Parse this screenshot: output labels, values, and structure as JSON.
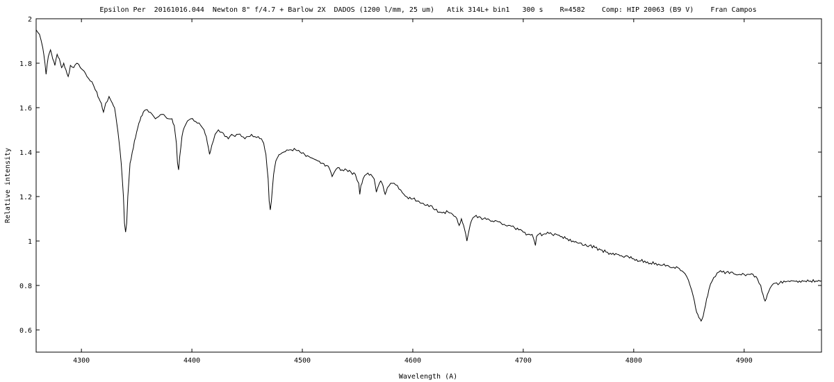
{
  "chart_data": {
    "type": "line",
    "title": "Epsilon Per  20161016.044  Newton 8\" f/4.7 + Barlow 2X  DADOS (1200 l/mm, 25 um)   Atik 314L+ bin1   300 s    R=4582    Comp: HIP 20063 (B9 V)    Fran Campos",
    "xlabel": "Wavelength (A)",
    "ylabel": "Relative intensity",
    "xlim": [
      4259,
      4970
    ],
    "ylim": [
      0.5,
      2.0
    ],
    "xticks": [
      "4300",
      "4400",
      "4500",
      "4600",
      "4700",
      "4800",
      "4900"
    ],
    "yticks": [
      "0.6",
      "0.8",
      "1",
      "1.2",
      "1.4",
      "1.6",
      "1.8",
      "2"
    ],
    "grid": false,
    "legend": "none",
    "series": [
      {
        "color": "#000000",
        "points": [
          [
            4259,
            1.95
          ],
          [
            4262,
            1.93
          ],
          [
            4265,
            1.87
          ],
          [
            4267,
            1.8
          ],
          [
            4268,
            1.75
          ],
          [
            4270,
            1.83
          ],
          [
            4272,
            1.86
          ],
          [
            4274,
            1.82
          ],
          [
            4276,
            1.79
          ],
          [
            4278,
            1.84
          ],
          [
            4280,
            1.82
          ],
          [
            4282,
            1.78
          ],
          [
            4284,
            1.8
          ],
          [
            4286,
            1.77
          ],
          [
            4288,
            1.74
          ],
          [
            4290,
            1.79
          ],
          [
            4293,
            1.78
          ],
          [
            4296,
            1.8
          ],
          [
            4299,
            1.78
          ],
          [
            4301,
            1.77
          ],
          [
            4303,
            1.76
          ],
          [
            4305,
            1.74
          ],
          [
            4308,
            1.72
          ],
          [
            4311,
            1.7
          ],
          [
            4314,
            1.67
          ],
          [
            4316,
            1.64
          ],
          [
            4318,
            1.62
          ],
          [
            4320,
            1.58
          ],
          [
            4322,
            1.62
          ],
          [
            4325,
            1.65
          ],
          [
            4328,
            1.62
          ],
          [
            4330,
            1.6
          ],
          [
            4332,
            1.53
          ],
          [
            4334,
            1.45
          ],
          [
            4336,
            1.35
          ],
          [
            4338,
            1.2
          ],
          [
            4339,
            1.08
          ],
          [
            4340,
            1.04
          ],
          [
            4341,
            1.08
          ],
          [
            4342,
            1.2
          ],
          [
            4344,
            1.35
          ],
          [
            4346,
            1.4
          ],
          [
            4348,
            1.45
          ],
          [
            4350,
            1.49
          ],
          [
            4352,
            1.53
          ],
          [
            4354,
            1.56
          ],
          [
            4356,
            1.58
          ],
          [
            4358,
            1.59
          ],
          [
            4361,
            1.58
          ],
          [
            4364,
            1.57
          ],
          [
            4367,
            1.55
          ],
          [
            4370,
            1.56
          ],
          [
            4373,
            1.57
          ],
          [
            4376,
            1.56
          ],
          [
            4379,
            1.55
          ],
          [
            4382,
            1.55
          ],
          [
            4384,
            1.52
          ],
          [
            4386,
            1.44
          ],
          [
            4387,
            1.35
          ],
          [
            4388,
            1.32
          ],
          [
            4389,
            1.38
          ],
          [
            4391,
            1.47
          ],
          [
            4393,
            1.51
          ],
          [
            4396,
            1.54
          ],
          [
            4399,
            1.55
          ],
          [
            4402,
            1.54
          ],
          [
            4405,
            1.53
          ],
          [
            4408,
            1.52
          ],
          [
            4411,
            1.5
          ],
          [
            4413,
            1.47
          ],
          [
            4415,
            1.42
          ],
          [
            4416,
            1.39
          ],
          [
            4418,
            1.43
          ],
          [
            4421,
            1.48
          ],
          [
            4424,
            1.5
          ],
          [
            4427,
            1.49
          ],
          [
            4430,
            1.47
          ],
          [
            4433,
            1.46
          ],
          [
            4436,
            1.48
          ],
          [
            4439,
            1.47
          ],
          [
            4442,
            1.48
          ],
          [
            4445,
            1.47
          ],
          [
            4448,
            1.46
          ],
          [
            4451,
            1.47
          ],
          [
            4454,
            1.48
          ],
          [
            4457,
            1.47
          ],
          [
            4460,
            1.47
          ],
          [
            4463,
            1.46
          ],
          [
            4465,
            1.44
          ],
          [
            4467,
            1.39
          ],
          [
            4469,
            1.28
          ],
          [
            4470,
            1.18
          ],
          [
            4471,
            1.14
          ],
          [
            4472,
            1.18
          ],
          [
            4474,
            1.3
          ],
          [
            4476,
            1.36
          ],
          [
            4478,
            1.38
          ],
          [
            4480,
            1.39
          ],
          [
            4483,
            1.4
          ],
          [
            4486,
            1.41
          ],
          [
            4490,
            1.41
          ],
          [
            4494,
            1.41
          ],
          [
            4498,
            1.4
          ],
          [
            4502,
            1.39
          ],
          [
            4506,
            1.38
          ],
          [
            4510,
            1.37
          ],
          [
            4514,
            1.36
          ],
          [
            4518,
            1.35
          ],
          [
            4522,
            1.34
          ],
          [
            4525,
            1.32
          ],
          [
            4527,
            1.29
          ],
          [
            4529,
            1.31
          ],
          [
            4532,
            1.33
          ],
          [
            4536,
            1.32
          ],
          [
            4540,
            1.32
          ],
          [
            4544,
            1.31
          ],
          [
            4548,
            1.3
          ],
          [
            4551,
            1.26
          ],
          [
            4552,
            1.21
          ],
          [
            4553,
            1.25
          ],
          [
            4555,
            1.28
          ],
          [
            4558,
            1.3
          ],
          [
            4562,
            1.3
          ],
          [
            4565,
            1.28
          ],
          [
            4567,
            1.22
          ],
          [
            4569,
            1.25
          ],
          [
            4571,
            1.27
          ],
          [
            4573,
            1.25
          ],
          [
            4575,
            1.21
          ],
          [
            4577,
            1.24
          ],
          [
            4580,
            1.26
          ],
          [
            4583,
            1.26
          ],
          [
            4586,
            1.25
          ],
          [
            4589,
            1.23
          ],
          [
            4592,
            1.21
          ],
          [
            4596,
            1.19
          ],
          [
            4600,
            1.19
          ],
          [
            4604,
            1.18
          ],
          [
            4608,
            1.17
          ],
          [
            4612,
            1.16
          ],
          [
            4616,
            1.16
          ],
          [
            4620,
            1.14
          ],
          [
            4624,
            1.13
          ],
          [
            4628,
            1.13
          ],
          [
            4632,
            1.13
          ],
          [
            4636,
            1.12
          ],
          [
            4640,
            1.1
          ],
          [
            4642,
            1.07
          ],
          [
            4644,
            1.1
          ],
          [
            4646,
            1.07
          ],
          [
            4648,
            1.03
          ],
          [
            4649,
            1.0
          ],
          [
            4651,
            1.05
          ],
          [
            4653,
            1.09
          ],
          [
            4656,
            1.11
          ],
          [
            4660,
            1.11
          ],
          [
            4664,
            1.1
          ],
          [
            4668,
            1.1
          ],
          [
            4672,
            1.09
          ],
          [
            4676,
            1.09
          ],
          [
            4680,
            1.08
          ],
          [
            4684,
            1.07
          ],
          [
            4688,
            1.07
          ],
          [
            4692,
            1.06
          ],
          [
            4696,
            1.05
          ],
          [
            4700,
            1.04
          ],
          [
            4704,
            1.03
          ],
          [
            4708,
            1.03
          ],
          [
            4710,
            1.0
          ],
          [
            4711,
            0.98
          ],
          [
            4712,
            1.02
          ],
          [
            4714,
            1.03
          ],
          [
            4718,
            1.03
          ],
          [
            4722,
            1.04
          ],
          [
            4726,
            1.03
          ],
          [
            4730,
            1.03
          ],
          [
            4735,
            1.02
          ],
          [
            4740,
            1.01
          ],
          [
            4745,
            1.0
          ],
          [
            4750,
            0.99
          ],
          [
            4755,
            0.98
          ],
          [
            4760,
            0.98
          ],
          [
            4765,
            0.97
          ],
          [
            4770,
            0.96
          ],
          [
            4775,
            0.95
          ],
          [
            4780,
            0.94
          ],
          [
            4785,
            0.94
          ],
          [
            4790,
            0.93
          ],
          [
            4795,
            0.93
          ],
          [
            4800,
            0.92
          ],
          [
            4805,
            0.91
          ],
          [
            4810,
            0.91
          ],
          [
            4815,
            0.9
          ],
          [
            4820,
            0.9
          ],
          [
            4825,
            0.89
          ],
          [
            4830,
            0.89
          ],
          [
            4835,
            0.88
          ],
          [
            4840,
            0.88
          ],
          [
            4845,
            0.86
          ],
          [
            4848,
            0.84
          ],
          [
            4851,
            0.8
          ],
          [
            4854,
            0.75
          ],
          [
            4856,
            0.7
          ],
          [
            4858,
            0.67
          ],
          [
            4860,
            0.65
          ],
          [
            4861,
            0.64
          ],
          [
            4862,
            0.65
          ],
          [
            4864,
            0.69
          ],
          [
            4866,
            0.74
          ],
          [
            4868,
            0.78
          ],
          [
            4871,
            0.82
          ],
          [
            4874,
            0.84
          ],
          [
            4877,
            0.86
          ],
          [
            4880,
            0.86
          ],
          [
            4884,
            0.86
          ],
          [
            4888,
            0.86
          ],
          [
            4892,
            0.85
          ],
          [
            4896,
            0.85
          ],
          [
            4900,
            0.85
          ],
          [
            4904,
            0.85
          ],
          [
            4908,
            0.85
          ],
          [
            4912,
            0.83
          ],
          [
            4915,
            0.8
          ],
          [
            4917,
            0.76
          ],
          [
            4918,
            0.74
          ],
          [
            4919,
            0.73
          ],
          [
            4920,
            0.74
          ],
          [
            4922,
            0.77
          ],
          [
            4925,
            0.8
          ],
          [
            4928,
            0.81
          ],
          [
            4932,
            0.81
          ],
          [
            4936,
            0.82
          ],
          [
            4940,
            0.82
          ],
          [
            4945,
            0.82
          ],
          [
            4950,
            0.82
          ],
          [
            4955,
            0.82
          ],
          [
            4960,
            0.82
          ],
          [
            4965,
            0.82
          ],
          [
            4970,
            0.82
          ]
        ]
      }
    ]
  }
}
